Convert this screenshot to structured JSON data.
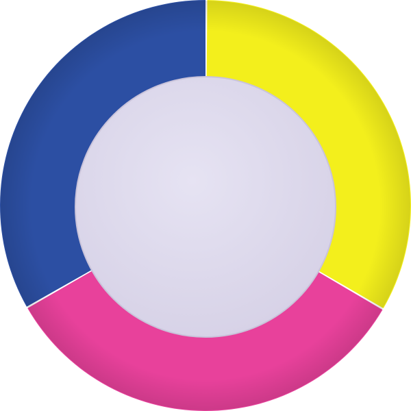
{
  "object": {
    "segments": [
      {
        "name": "yellow",
        "color": "#f3ef1c"
      },
      {
        "name": "pink",
        "color": "#e8419b"
      },
      {
        "name": "blue",
        "color": "#2c4fa3"
      }
    ],
    "center_color": "#e2def0",
    "background": "#ffffff"
  }
}
